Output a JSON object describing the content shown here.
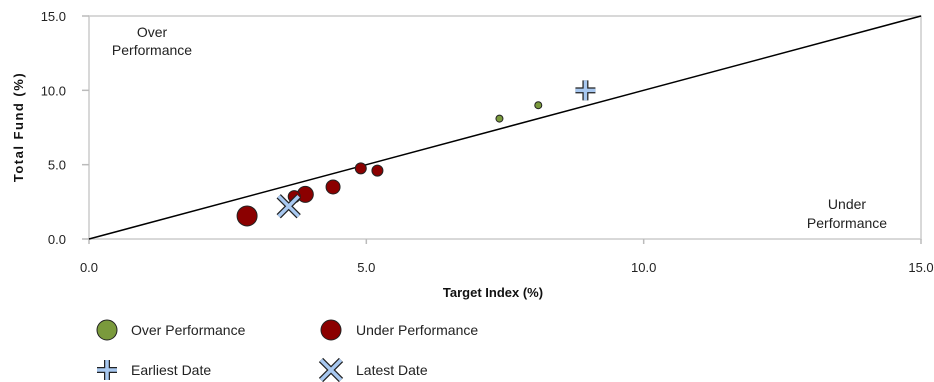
{
  "chart_data": {
    "type": "scatter",
    "xlabel": "Target Index (%)",
    "ylabel": "Total Fund (%)",
    "xlim": [
      0,
      15
    ],
    "ylim": [
      0,
      15
    ],
    "x_ticks": [
      "0.0",
      "5.0",
      "10.0",
      "15.0"
    ],
    "y_ticks": [
      "0.0",
      "5.0",
      "10.0",
      "15.0"
    ],
    "x_tick_values": [
      0,
      5,
      10,
      15
    ],
    "y_tick_values": [
      0,
      5,
      10,
      15
    ],
    "reference_line": {
      "from": [
        0,
        0
      ],
      "to": [
        15,
        15
      ]
    },
    "annotations": {
      "over_line1": "Over",
      "over_line2": "Performance",
      "under_line1": "Under",
      "under_line2": "Performance"
    },
    "series": [
      {
        "name": "Over Performance",
        "color": "#7a9a3c",
        "points": [
          {
            "x": 7.4,
            "y": 8.1,
            "r": 3.5
          },
          {
            "x": 8.1,
            "y": 9.0,
            "r": 3.5
          }
        ]
      },
      {
        "name": "Under Performance",
        "color": "#8b0000",
        "points": [
          {
            "x": 4.9,
            "y": 4.75,
            "r": 5.5
          },
          {
            "x": 5.2,
            "y": 4.6,
            "r": 5.5
          },
          {
            "x": 4.4,
            "y": 3.5,
            "r": 7
          },
          {
            "x": 3.9,
            "y": 3.0,
            "r": 8
          },
          {
            "x": 3.7,
            "y": 2.85,
            "r": 6
          },
          {
            "x": 2.85,
            "y": 1.55,
            "r": 10
          }
        ]
      }
    ],
    "markers": [
      {
        "name": "Earliest Date",
        "shape": "plus",
        "x": 8.95,
        "y": 10.0
      },
      {
        "name": "Latest Date",
        "shape": "x",
        "x": 3.6,
        "y": 2.2
      }
    ],
    "legend": {
      "placement": "bottom-left",
      "items": [
        "Over Performance",
        "Under Performance",
        "Earliest Date",
        "Latest Date"
      ]
    }
  }
}
